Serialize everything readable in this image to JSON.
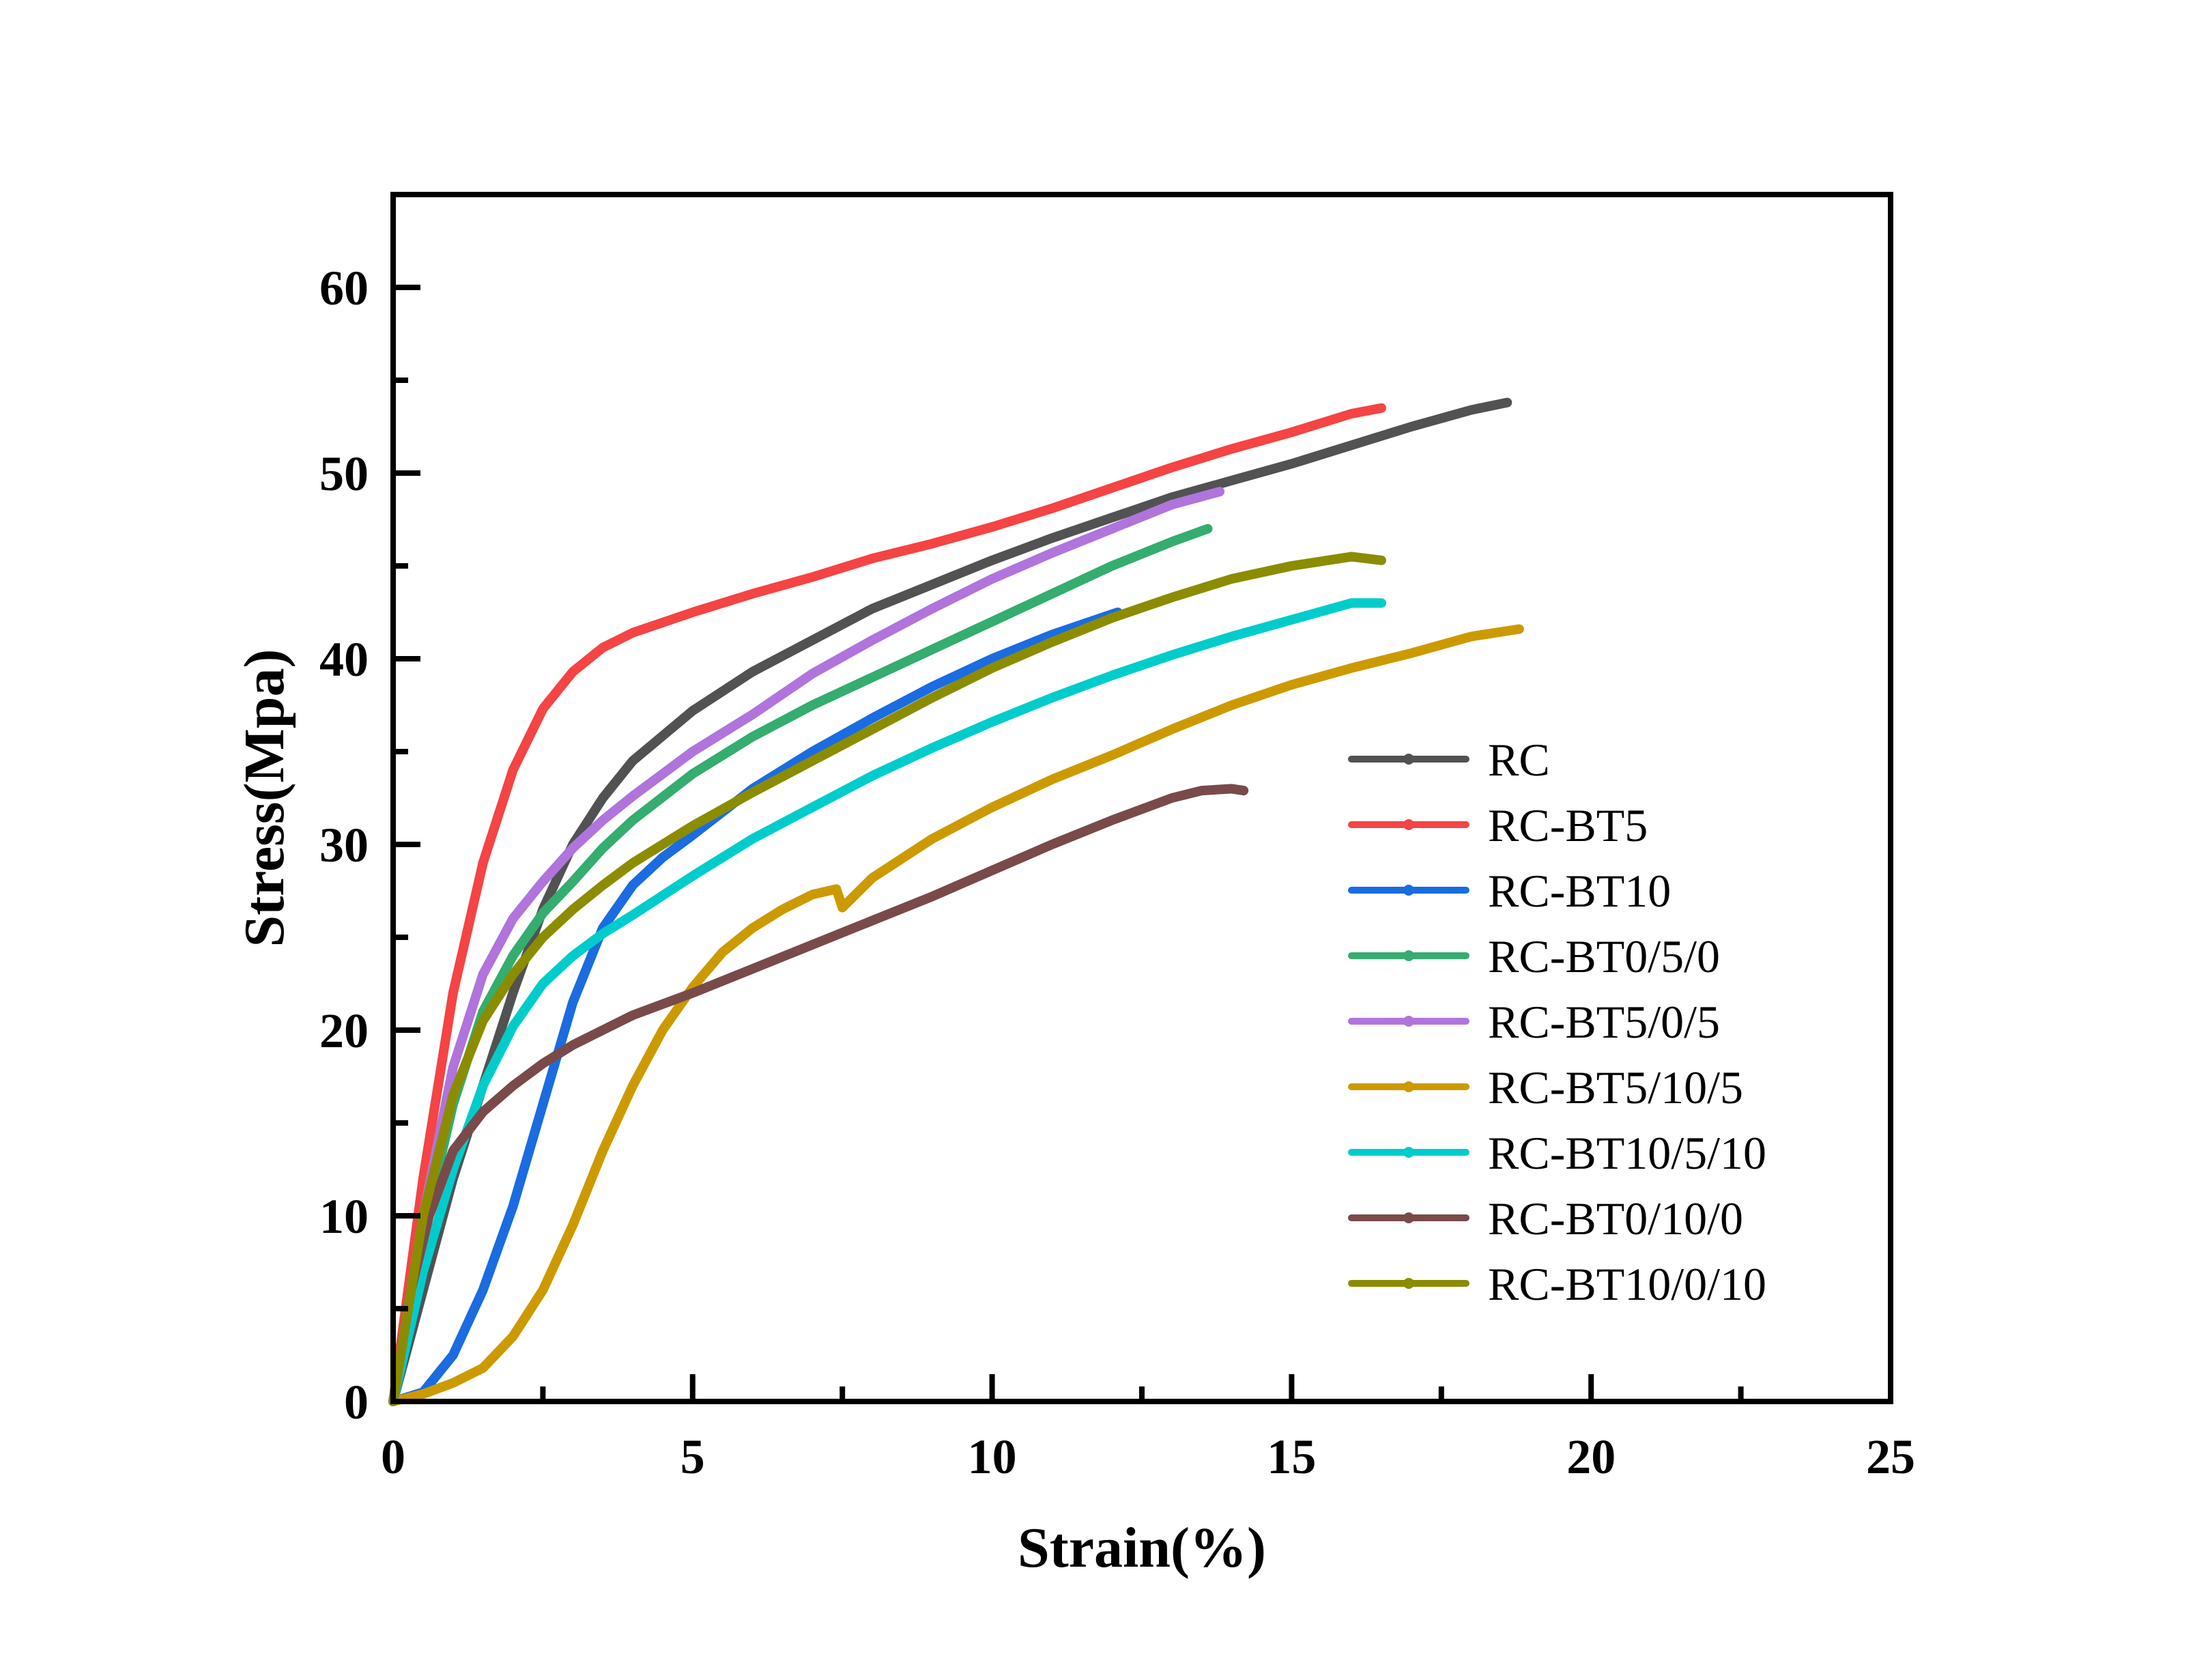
{
  "chart_data": {
    "type": "line",
    "title": "",
    "xlabel": "Strain(%)",
    "ylabel": "Stress(Mpa)",
    "xlim": [
      0,
      25
    ],
    "ylim": [
      0,
      65
    ],
    "xticks": [
      0,
      5,
      10,
      15,
      20,
      25
    ],
    "xtick_labels": [
      "0",
      "5",
      "10",
      "15",
      "20",
      "25"
    ],
    "yticks": [
      0,
      10,
      20,
      30,
      40,
      50,
      60
    ],
    "ytick_labels": [
      "0",
      "10",
      "20",
      "30",
      "40",
      "50",
      "60"
    ],
    "grid": false,
    "legend_position": "center-right",
    "series": [
      {
        "name": "RC",
        "color": "#525252",
        "marker": "square",
        "x": [
          0,
          0.5,
          1,
          1.5,
          2,
          2.5,
          3,
          3.5,
          4,
          5,
          6,
          7,
          8,
          9,
          10,
          11,
          12,
          13,
          14,
          15,
          16,
          17,
          18,
          18.6
        ],
        "y": [
          0,
          6,
          12,
          17,
          22,
          26.5,
          30,
          32.5,
          34.5,
          37.2,
          39.3,
          41,
          42.7,
          44,
          45.3,
          46.5,
          47.6,
          48.7,
          49.6,
          50.5,
          51.5,
          52.5,
          53.4,
          53.8
        ]
      },
      {
        "name": "RC-BT5",
        "color": "#f44444",
        "marker": "circle",
        "x": [
          0,
          0.5,
          1,
          1.5,
          2,
          2.5,
          3,
          3.5,
          4,
          5,
          6,
          7,
          8,
          9,
          10,
          11,
          12,
          13,
          14,
          15,
          16,
          16.5
        ],
        "y": [
          0,
          12,
          22,
          29,
          34,
          37.3,
          39.3,
          40.6,
          41.4,
          42.5,
          43.5,
          44.4,
          45.4,
          46.2,
          47.1,
          48.1,
          49.2,
          50.3,
          51.3,
          52.2,
          53.2,
          53.5
        ]
      },
      {
        "name": "RC-BT10",
        "color": "#1a6ce0",
        "marker": "triangle-up",
        "x": [
          0,
          0.5,
          1,
          1.5,
          2,
          2.5,
          3,
          3.5,
          4,
          4.5,
          5,
          6,
          7,
          8,
          9,
          10,
          11,
          12,
          12.1
        ],
        "y": [
          0,
          0.5,
          2.5,
          6,
          10.5,
          16,
          21.5,
          25.5,
          27.8,
          29.3,
          30.5,
          33,
          35,
          36.8,
          38.5,
          40,
          41.3,
          42.4,
          42.5
        ]
      },
      {
        "name": "RC-BT0/5/0",
        "color": "#34ad6e",
        "marker": "triangle-down",
        "x": [
          0,
          0.5,
          1,
          1.5,
          2,
          2.5,
          3,
          3.5,
          4,
          5,
          6,
          7,
          8,
          9,
          10,
          11,
          12,
          13,
          13.6
        ],
        "y": [
          0,
          9,
          16,
          21,
          24,
          26.3,
          28,
          29.8,
          31.3,
          33.8,
          35.8,
          37.5,
          39,
          40.5,
          42,
          43.5,
          45,
          46.3,
          47
        ]
      },
      {
        "name": "RC-BT5/0/5",
        "color": "#b074dc",
        "marker": "diamond",
        "x": [
          0,
          0.5,
          1,
          1.5,
          2,
          2.5,
          3,
          3.5,
          4,
          5,
          6,
          7,
          8,
          9,
          10,
          11,
          12,
          13,
          13.8
        ],
        "y": [
          0,
          10,
          18,
          23,
          26,
          28,
          29.8,
          31.3,
          32.6,
          35,
          37,
          39.2,
          41,
          42.7,
          44.3,
          45.7,
          47,
          48.3,
          49
        ]
      },
      {
        "name": "RC-BT5/10/5",
        "color": "#cc9a00",
        "marker": "triangle-left",
        "x": [
          0,
          0.5,
          1,
          1.5,
          2,
          2.5,
          3,
          3.5,
          4,
          4.5,
          5,
          5.5,
          6,
          6.5,
          7,
          7.4,
          7.5,
          8,
          9,
          10,
          11,
          12,
          13,
          14,
          15,
          16,
          17,
          18,
          18.8
        ],
        "y": [
          0,
          0.4,
          1,
          1.8,
          3.5,
          6,
          9.5,
          13.5,
          17,
          20,
          22.3,
          24.2,
          25.5,
          26.5,
          27.3,
          27.6,
          26.6,
          28.2,
          30.3,
          32,
          33.5,
          34.8,
          36.2,
          37.5,
          38.6,
          39.5,
          40.3,
          41.2,
          41.6
        ]
      },
      {
        "name": "RC-BT10/5/10",
        "color": "#00cccc",
        "marker": "triangle-right",
        "x": [
          0,
          0.5,
          1,
          1.5,
          2,
          2.5,
          3,
          3.5,
          4,
          5,
          6,
          7,
          8,
          9,
          10,
          11,
          12,
          13,
          14,
          15,
          16,
          16.5
        ],
        "y": [
          0,
          7,
          12.5,
          17,
          20.2,
          22.5,
          24,
          25.2,
          26.2,
          28.3,
          30.3,
          32,
          33.7,
          35.2,
          36.6,
          37.9,
          39.1,
          40.2,
          41.2,
          42.1,
          43,
          43
        ]
      },
      {
        "name": "RC-BT0/10/0",
        "color": "#7a4a4a",
        "marker": "hexagon",
        "x": [
          0,
          0.3,
          0.6,
          1,
          1.5,
          2,
          2.5,
          3,
          4,
          5,
          6,
          7,
          8,
          9,
          10,
          11,
          12,
          13,
          13.5,
          14,
          14.2
        ],
        "y": [
          0,
          6,
          10,
          13.5,
          15.6,
          17,
          18.2,
          19.2,
          20.8,
          22,
          23.3,
          24.6,
          25.9,
          27.2,
          28.6,
          30,
          31.3,
          32.5,
          32.9,
          33,
          32.9
        ]
      },
      {
        "name": "RC-BT10/0/10",
        "color": "#8c8c00",
        "marker": "star",
        "x": [
          0,
          0.5,
          1,
          1.5,
          2,
          2.5,
          3,
          3.5,
          4,
          5,
          6,
          7,
          8,
          9,
          10,
          11,
          12,
          13,
          14,
          15,
          16,
          16.5
        ],
        "y": [
          0,
          10,
          16.5,
          20.5,
          23,
          25,
          26.5,
          27.8,
          29,
          31,
          32.8,
          34.5,
          36.2,
          37.9,
          39.5,
          40.9,
          42.2,
          43.3,
          44.3,
          45,
          45.5,
          45.3
        ]
      }
    ]
  }
}
